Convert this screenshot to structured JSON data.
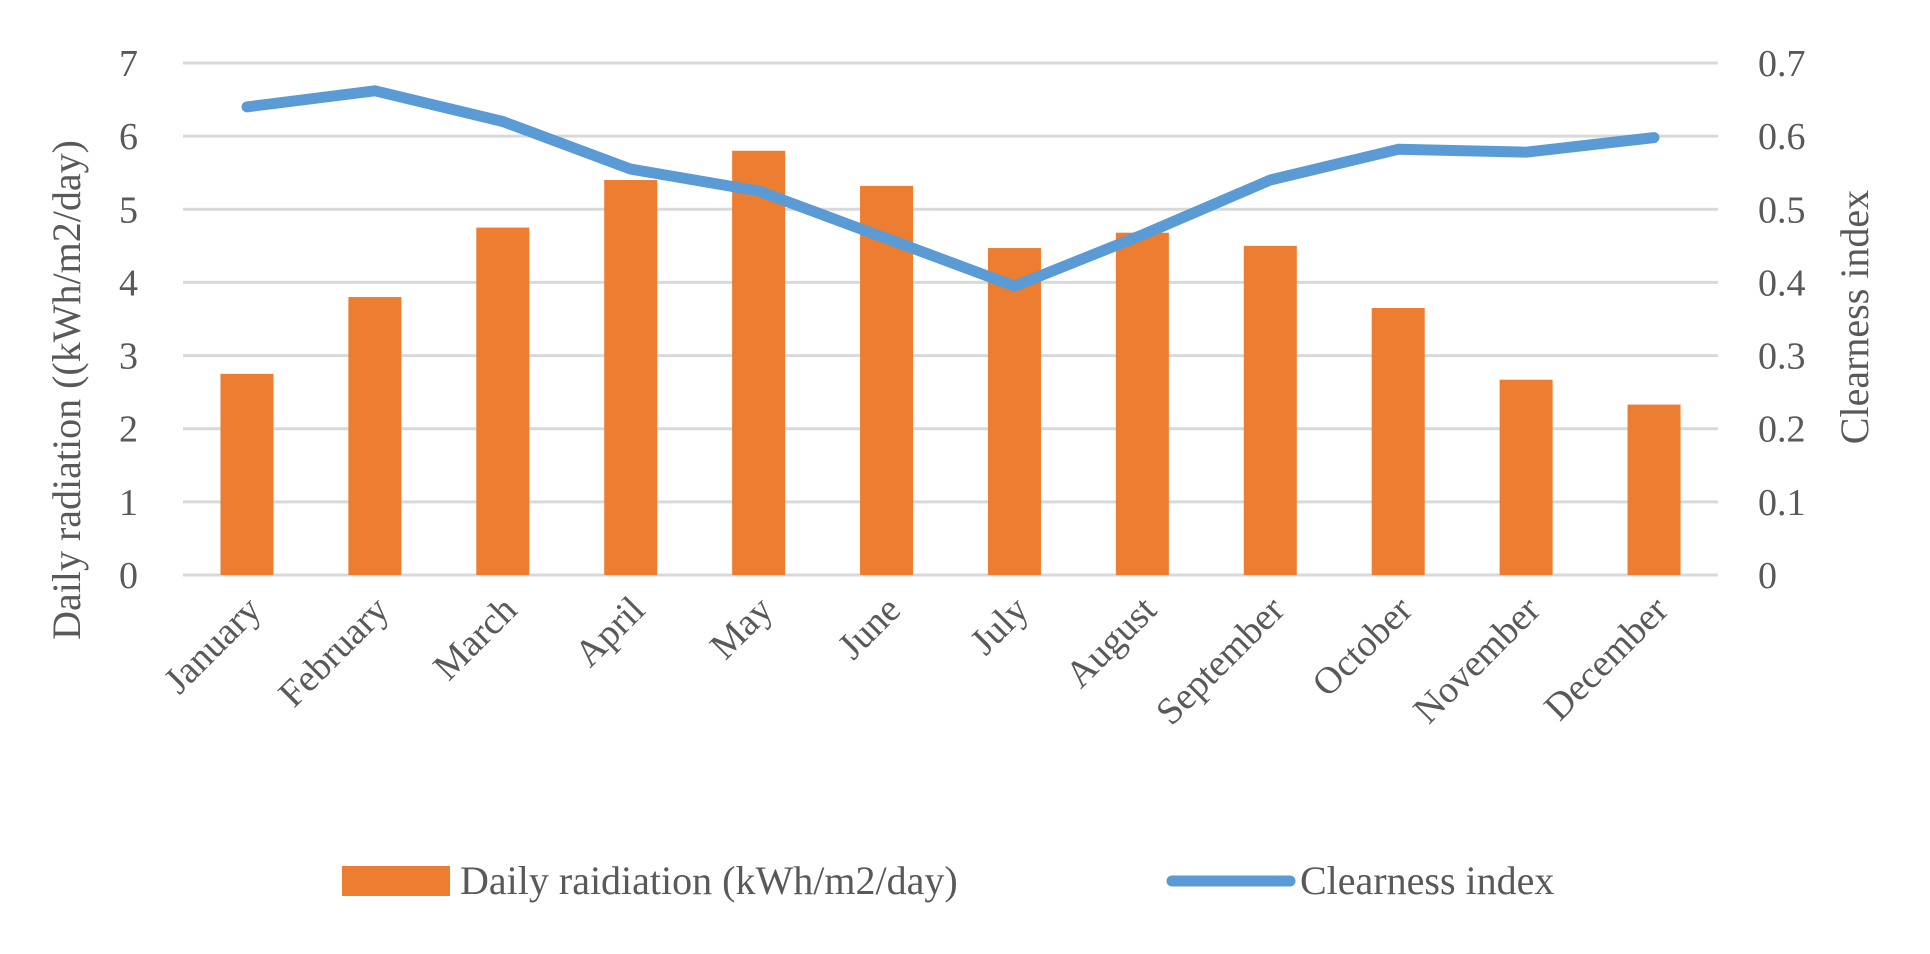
{
  "chart_data": {
    "type": "bar",
    "title": "",
    "categories": [
      "January",
      "February",
      "March",
      "April",
      "May",
      "June",
      "July",
      "August",
      "September",
      "October",
      "November",
      "December"
    ],
    "series": [
      {
        "name": "Daily raidiation (kWh/m2/day)",
        "type": "bar",
        "axis": "left",
        "color": "#ed7d31",
        "values": [
          2.75,
          3.8,
          4.75,
          5.4,
          5.8,
          5.32,
          4.47,
          4.68,
          4.5,
          3.65,
          2.67,
          2.33
        ]
      },
      {
        "name": "Clearness index",
        "type": "line",
        "axis": "right",
        "color": "#5b9bd5",
        "values": [
          0.64,
          0.662,
          0.62,
          0.555,
          0.525,
          0.46,
          0.395,
          0.465,
          0.54,
          0.582,
          0.578,
          0.598
        ]
      }
    ],
    "y_left": {
      "label": "Daily radiation ((kWh/m2/day)",
      "lim": [
        0,
        7
      ],
      "ticks": [
        "0",
        "1",
        "2",
        "3",
        "4",
        "5",
        "6",
        "7"
      ]
    },
    "y_right": {
      "label": "Clearness index",
      "lim": [
        0,
        0.7
      ],
      "ticks": [
        "0",
        "0.1",
        "0.2",
        "0.3",
        "0.4",
        "0.5",
        "0.6",
        "0.7"
      ]
    },
    "grid": true,
    "legend_position": "bottom"
  }
}
